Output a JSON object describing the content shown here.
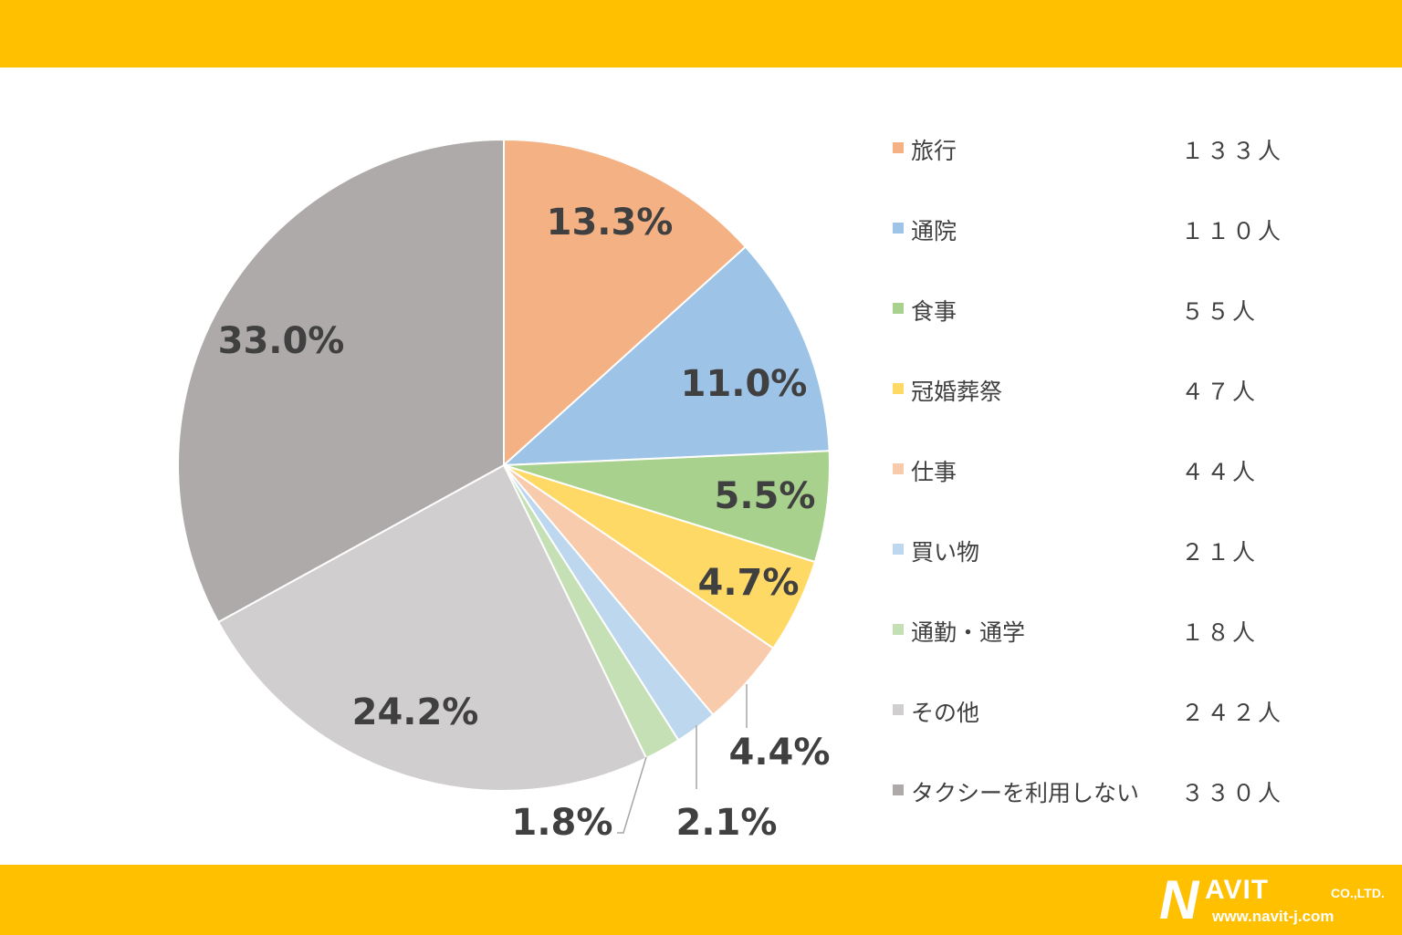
{
  "chart_data": {
    "type": "pie",
    "slices": [
      {
        "label": "旅行",
        "count": "１３３人",
        "value": 13.3,
        "display": "13.3%",
        "color": "#F4B183"
      },
      {
        "label": "通院",
        "count": "１１０人",
        "value": 11.0,
        "display": "11.0%",
        "color": "#9DC3E6"
      },
      {
        "label": "食事",
        "count": "５５人",
        "value": 5.5,
        "display": "5.5%",
        "color": "#A9D18E"
      },
      {
        "label": "冠婚葬祭",
        "count": "４７人",
        "value": 4.7,
        "display": "4.7%",
        "color": "#FFD966"
      },
      {
        "label": "仕事",
        "count": "４４人",
        "value": 4.4,
        "display": "4.4%",
        "color": "#F8CBAD"
      },
      {
        "label": "買い物",
        "count": "２１人",
        "value": 2.1,
        "display": "2.1%",
        "color": "#BDD7EE"
      },
      {
        "label": "通勤・通学",
        "count": "１８人",
        "value": 1.8,
        "display": "1.8%",
        "color": "#C5E0B4"
      },
      {
        "label": "その他",
        "count": "２４２人",
        "value": 24.2,
        "display": "24.2%",
        "color": "#D0CECE"
      },
      {
        "label": "タクシーを利用しない",
        "count": "３３０人",
        "value": 33.0,
        "display": "33.0%",
        "color": "#AEAAAA"
      }
    ],
    "legend_position": "right"
  },
  "brand": {
    "name": "NAVIT",
    "name_initial": "N",
    "name_rest": "AVIT",
    "suffix": "CO.,LTD.",
    "url": "www.navit-j.com",
    "band_color": "#FFC000"
  }
}
